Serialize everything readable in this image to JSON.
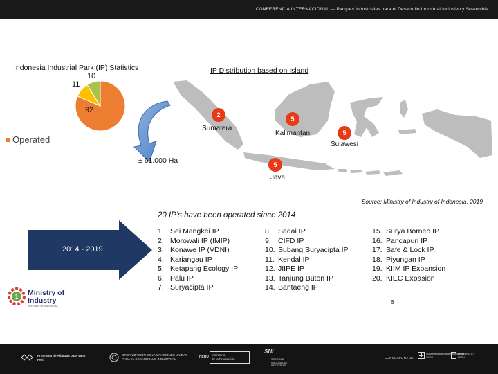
{
  "header": {
    "banner_text": "CONFERENCIA INTERNACIONAL — Parques Industriales para el Desarrollo Industrial Inclusivo y Sostenible"
  },
  "stats": {
    "title": "Indonesia Industrial Park (IP) Statistics",
    "legend_label": "Operated"
  },
  "chart_data": {
    "type": "pie",
    "title": "Indonesia Industrial Park (IP) Statistics",
    "values": [
      92,
      11,
      10
    ],
    "labels": [
      "92",
      "11",
      "10"
    ],
    "colors": [
      "#ed7d31",
      "#ffc000",
      "#a9c24a"
    ],
    "legend": [
      {
        "name": "Operated",
        "color": "#ed7d31"
      }
    ],
    "legend_position": "left"
  },
  "distribution": {
    "title": "IP Distribution based on Island",
    "area": "± 61.000 Ha",
    "islands": [
      {
        "name": "Sumatera",
        "count": "2"
      },
      {
        "name": "Kalimantan",
        "count": "5"
      },
      {
        "name": "Sulawesi",
        "count": "5"
      },
      {
        "name": "Java",
        "count": "5"
      }
    ]
  },
  "source": "Source: Ministry of Industry of Indonesia, 2019",
  "operated": {
    "heading": "20 IP’s have been operated since 2014",
    "period": "2014 - 2019",
    "list": [
      {
        "num": "1.",
        "name": "Sei Mangkei IP"
      },
      {
        "num": "2.",
        "name": "Morowali IP (IMIP)"
      },
      {
        "num": "3.",
        "name": "Konawe IP (VDNI)"
      },
      {
        "num": "4.",
        "name": "Kariangau IP"
      },
      {
        "num": "5.",
        "name": "Ketapang Ecology IP"
      },
      {
        "num": "6.",
        "name": "Palu IP"
      },
      {
        "num": "7.",
        "name": "Suryacipta IP"
      },
      {
        "num": "8.",
        "name": "Sadai IP"
      },
      {
        "num": "9.",
        "name": "CIFD IP"
      },
      {
        "num": "10.",
        "name": "Subang Suryacipta IP"
      },
      {
        "num": "11.",
        "name": "Kendal IP"
      },
      {
        "num": "12.",
        "name": "JIIPE IP"
      },
      {
        "num": "13.",
        "name": "Tanjung Buton IP"
      },
      {
        "num": "14.",
        "name": "Bantaeng IP"
      },
      {
        "num": "15.",
        "name": "Surya Borneo IP"
      },
      {
        "num": "16.",
        "name": "Pancapuri IP"
      },
      {
        "num": "17.",
        "name": "Safe & Lock IP"
      },
      {
        "num": "18.",
        "name": "Piyungan IP"
      },
      {
        "num": "19.",
        "name": "KIIM IP Expansion"
      },
      {
        "num": "20.",
        "name": "KIEC Expasion"
      }
    ]
  },
  "page_number": "6",
  "logo": {
    "title_line1": "Ministry of",
    "title_line2": "Industry",
    "subtitle": "REPUBLIC OF INDONESIA"
  },
  "footer": {
    "item1_line1": "Programa de Alianzas para Valor",
    "item1_line2": "Perú",
    "item2_line1": "ORGANIZACIÓN DE LAS NACIONES UNIDAS",
    "item2_line2": "PARA EL DESARROLLO INDUSTRIAL",
    "item3_brand": "PERÚ",
    "item3_line1": "Ministerio",
    "item3_line2": "de la Producción",
    "item4_brand": "SNI",
    "item4_line1": "SOCIEDAD",
    "item4_line2": "NACIONAL DE",
    "item4_line3": "INDUSTRIAS",
    "item5": "CON EL APOYO DE:",
    "item6_line1": "Schweizerische Eidgenossenschaft",
    "item6_line2": "SECO",
    "item7_line1": "UNIVERSITÄT",
    "item7_line2": "BERN"
  }
}
